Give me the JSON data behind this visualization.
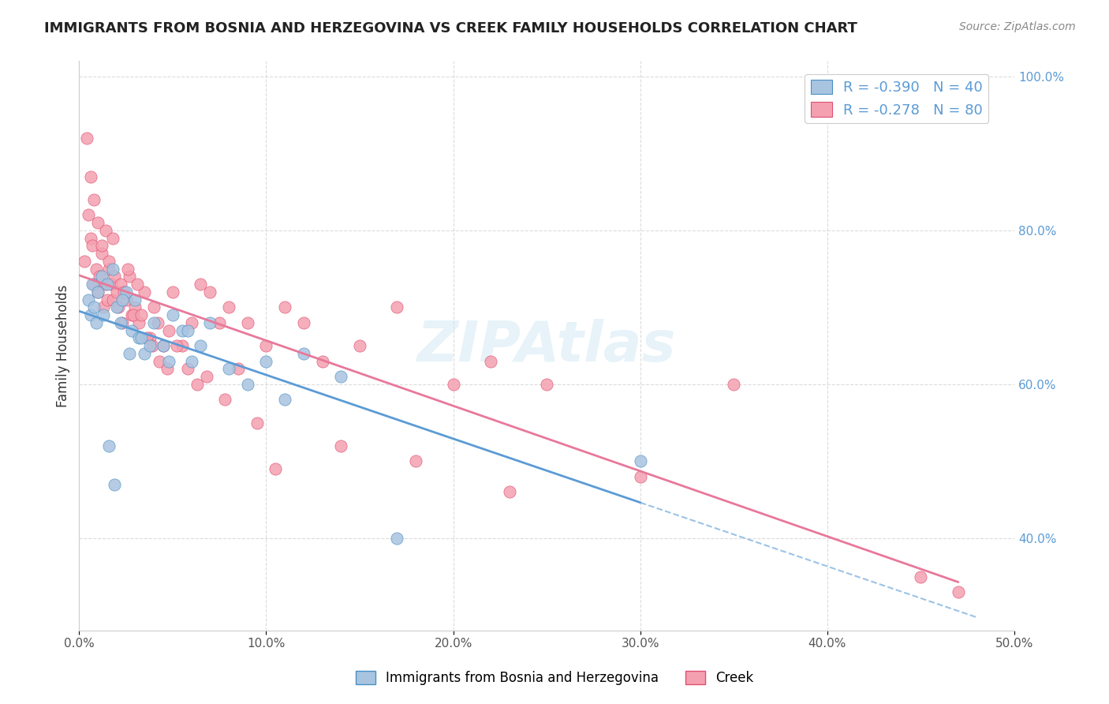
{
  "title": "IMMIGRANTS FROM BOSNIA AND HERZEGOVINA VS CREEK FAMILY HOUSEHOLDS CORRELATION CHART",
  "source": "Source: ZipAtlas.com",
  "ylabel": "Family Households",
  "legend_label1": "Immigrants from Bosnia and Herzegovina",
  "legend_label2": "Creek",
  "r1": "-0.390",
  "n1": "40",
  "r2": "-0.278",
  "n2": "80",
  "color_blue": "#a8c4e0",
  "color_blue_dark": "#4a90c4",
  "color_pink": "#f4a0b0",
  "color_pink_dark": "#e05070",
  "color_line_blue": "#5b9bd5",
  "color_line_pink": "#e8789a",
  "xmin": 0.0,
  "xmax": 0.5,
  "ymin": 0.28,
  "ymax": 1.02,
  "blue_scatter_x": [
    0.005,
    0.006,
    0.007,
    0.008,
    0.009,
    0.01,
    0.012,
    0.013,
    0.015,
    0.018,
    0.02,
    0.022,
    0.025,
    0.028,
    0.03,
    0.032,
    0.035,
    0.04,
    0.045,
    0.05,
    0.055,
    0.06,
    0.065,
    0.07,
    0.08,
    0.09,
    0.1,
    0.11,
    0.12,
    0.14,
    0.016,
    0.019,
    0.023,
    0.027,
    0.033,
    0.038,
    0.048,
    0.058,
    0.17,
    0.3
  ],
  "blue_scatter_y": [
    0.71,
    0.69,
    0.73,
    0.7,
    0.68,
    0.72,
    0.74,
    0.69,
    0.73,
    0.75,
    0.7,
    0.68,
    0.72,
    0.67,
    0.71,
    0.66,
    0.64,
    0.68,
    0.65,
    0.69,
    0.67,
    0.63,
    0.65,
    0.68,
    0.62,
    0.6,
    0.63,
    0.58,
    0.64,
    0.61,
    0.52,
    0.47,
    0.71,
    0.64,
    0.66,
    0.65,
    0.63,
    0.67,
    0.4,
    0.5
  ],
  "pink_scatter_x": [
    0.003,
    0.005,
    0.006,
    0.007,
    0.008,
    0.009,
    0.01,
    0.011,
    0.012,
    0.013,
    0.014,
    0.015,
    0.016,
    0.017,
    0.018,
    0.019,
    0.02,
    0.021,
    0.022,
    0.023,
    0.025,
    0.027,
    0.028,
    0.03,
    0.032,
    0.035,
    0.038,
    0.04,
    0.042,
    0.045,
    0.048,
    0.05,
    0.055,
    0.06,
    0.065,
    0.07,
    0.075,
    0.08,
    0.09,
    0.1,
    0.11,
    0.12,
    0.13,
    0.15,
    0.17,
    0.2,
    0.22,
    0.25,
    0.3,
    0.35,
    0.004,
    0.006,
    0.008,
    0.01,
    0.012,
    0.014,
    0.016,
    0.018,
    0.024,
    0.026,
    0.029,
    0.031,
    0.033,
    0.036,
    0.039,
    0.043,
    0.047,
    0.052,
    0.058,
    0.063,
    0.068,
    0.078,
    0.085,
    0.095,
    0.105,
    0.14,
    0.18,
    0.23,
    0.45,
    0.47
  ],
  "pink_scatter_y": [
    0.76,
    0.82,
    0.79,
    0.78,
    0.73,
    0.75,
    0.72,
    0.74,
    0.77,
    0.7,
    0.73,
    0.71,
    0.75,
    0.73,
    0.71,
    0.74,
    0.72,
    0.7,
    0.73,
    0.68,
    0.71,
    0.74,
    0.69,
    0.7,
    0.68,
    0.72,
    0.66,
    0.7,
    0.68,
    0.65,
    0.67,
    0.72,
    0.65,
    0.68,
    0.73,
    0.72,
    0.68,
    0.7,
    0.68,
    0.65,
    0.7,
    0.68,
    0.63,
    0.65,
    0.7,
    0.6,
    0.63,
    0.6,
    0.48,
    0.6,
    0.92,
    0.87,
    0.84,
    0.81,
    0.78,
    0.8,
    0.76,
    0.79,
    0.72,
    0.75,
    0.69,
    0.73,
    0.69,
    0.66,
    0.65,
    0.63,
    0.62,
    0.65,
    0.62,
    0.6,
    0.61,
    0.58,
    0.62,
    0.55,
    0.49,
    0.52,
    0.5,
    0.46,
    0.35,
    0.33
  ]
}
